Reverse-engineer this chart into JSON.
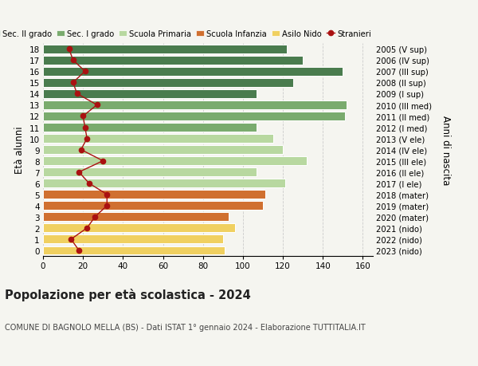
{
  "ages": [
    18,
    17,
    16,
    15,
    14,
    13,
    12,
    11,
    10,
    9,
    8,
    7,
    6,
    5,
    4,
    3,
    2,
    1,
    0
  ],
  "years": [
    "2005 (V sup)",
    "2006 (IV sup)",
    "2007 (III sup)",
    "2008 (II sup)",
    "2009 (I sup)",
    "2010 (III med)",
    "2011 (II med)",
    "2012 (I med)",
    "2013 (V ele)",
    "2014 (IV ele)",
    "2015 (III ele)",
    "2016 (II ele)",
    "2017 (I ele)",
    "2018 (mater)",
    "2019 (mater)",
    "2020 (mater)",
    "2021 (nido)",
    "2022 (nido)",
    "2023 (nido)"
  ],
  "bar_values": [
    122,
    130,
    150,
    125,
    107,
    152,
    151,
    107,
    115,
    120,
    132,
    107,
    121,
    111,
    110,
    93,
    96,
    90,
    91
  ],
  "bar_colors": [
    "#4a7c4e",
    "#4a7c4e",
    "#4a7c4e",
    "#4a7c4e",
    "#4a7c4e",
    "#7aab6e",
    "#7aab6e",
    "#7aab6e",
    "#b8d8a0",
    "#b8d8a0",
    "#b8d8a0",
    "#b8d8a0",
    "#b8d8a0",
    "#d07030",
    "#d07030",
    "#d07030",
    "#f0d060",
    "#f0d060",
    "#f0d060"
  ],
  "stranieri_values": [
    13,
    15,
    21,
    15,
    17,
    27,
    20,
    21,
    22,
    19,
    30,
    18,
    23,
    32,
    32,
    26,
    22,
    14,
    18
  ],
  "stranieri_color": "#aa1111",
  "title": "Popolazione per età scolastica - 2024",
  "subtitle": "COMUNE DI BAGNOLO MELLA (BS) - Dati ISTAT 1° gennaio 2024 - Elaborazione TUTTITALIA.IT",
  "ylabel_left": "Età alunni",
  "ylabel_right": "Anni di nascita",
  "xlim": [
    0,
    165
  ],
  "xticks": [
    0,
    20,
    40,
    60,
    80,
    100,
    120,
    140,
    160
  ],
  "legend_labels": [
    "Sec. II grado",
    "Sec. I grado",
    "Scuola Primaria",
    "Scuola Infanzia",
    "Asilo Nido",
    "Stranieri"
  ],
  "legend_colors": [
    "#4a7c4e",
    "#7aab6e",
    "#b8d8a0",
    "#d07030",
    "#f0d060",
    "#aa1111"
  ],
  "background_color": "#f5f5f0",
  "grid_color": "#cccccc",
  "bar_height": 0.78
}
